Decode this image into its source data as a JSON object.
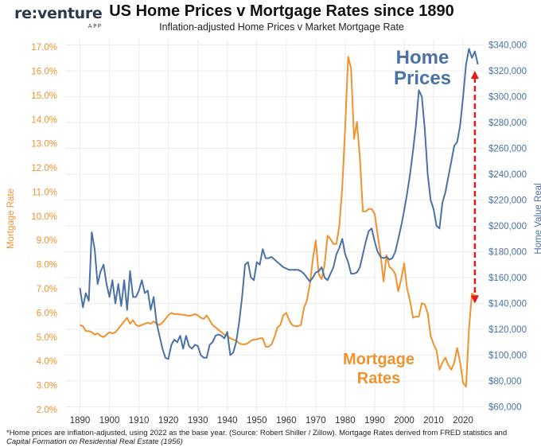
{
  "header": {
    "logo_text": "re:venture",
    "logo_sub": "APP",
    "title": "US Home Prices v Mortgage Rates since 1890",
    "subtitle": "Inflation-adjusted Home Prices v Market Mortgage Rate"
  },
  "footnote": {
    "line1": "*Home prices are inflation-adjusted, using 2022 as the base year. (Source: Robert Shiller / Zillow). Mortgage Rates derived from FRED statistics and",
    "line2": "Capital Formation on Residential Real Estate (1956)"
  },
  "colors": {
    "mortgage": "#f0922e",
    "home": "#4a72a6",
    "arrow": "#e31a1c",
    "grid": "#ececec"
  },
  "chart_data": {
    "type": "line",
    "x_ticks": [
      1890,
      1900,
      1910,
      1920,
      1930,
      1940,
      1950,
      1960,
      1970,
      1980,
      1990,
      2000,
      2010,
      2020
    ],
    "xlim": [
      1885,
      2027
    ],
    "left_axis": {
      "label": "Mortgage Rate",
      "ylim": [
        1.9,
        17.3
      ],
      "ticks": [
        2.0,
        3.0,
        4.0,
        5.0,
        6.0,
        7.0,
        8.0,
        9.0,
        10.0,
        11.0,
        12.0,
        13.0,
        14.0,
        15.0,
        16.0,
        17.0
      ],
      "tick_labels": [
        "2.0%",
        "3.0%",
        "4.0%",
        "5.0%",
        "6.0%",
        "7.0%",
        "8.0%",
        "9.0%",
        "10.0%",
        "11.0%",
        "12.0%",
        "13.0%",
        "14.0%",
        "15.0%",
        "16.0%",
        "17.0%"
      ]
    },
    "right_axis": {
      "label": "Home Value Real",
      "ylim": [
        56000,
        344000
      ],
      "ticks": [
        60000,
        80000,
        100000,
        120000,
        140000,
        160000,
        180000,
        200000,
        220000,
        240000,
        260000,
        280000,
        300000,
        320000,
        340000
      ],
      "tick_labels": [
        "$60,000",
        "$80,000",
        "$100,000",
        "$120,000",
        "$140,000",
        "$160,000",
        "$180,000",
        "$200,000",
        "$220,000",
        "$240,000",
        "$260,000",
        "$280,000",
        "$300,000",
        "$320,000",
        "$340,000"
      ]
    },
    "annotations": {
      "home_line1": "Home",
      "home_line2": "Prices",
      "mortgage_line1": "Mortgage",
      "mortgage_line2": "Rates"
    },
    "arrow": {
      "x": 2024,
      "y_top": 320000,
      "y_bottom": 140000
    },
    "series": [
      {
        "name": "Mortgage Rates",
        "axis": "left",
        "points": [
          [
            1890,
            5.5
          ],
          [
            1891,
            5.45
          ],
          [
            1892,
            5.25
          ],
          [
            1893,
            5.25
          ],
          [
            1894,
            5.2
          ],
          [
            1895,
            5.1
          ],
          [
            1896,
            5.15
          ],
          [
            1897,
            5.05
          ],
          [
            1898,
            5.0
          ],
          [
            1899,
            5.1
          ],
          [
            1900,
            5.2
          ],
          [
            1901,
            5.15
          ],
          [
            1902,
            5.2
          ],
          [
            1903,
            5.35
          ],
          [
            1904,
            5.5
          ],
          [
            1905,
            5.65
          ],
          [
            1906,
            5.8
          ],
          [
            1907,
            5.55
          ],
          [
            1908,
            5.7
          ],
          [
            1909,
            5.5
          ],
          [
            1910,
            5.45
          ],
          [
            1911,
            5.5
          ],
          [
            1912,
            5.55
          ],
          [
            1913,
            5.6
          ],
          [
            1914,
            5.55
          ],
          [
            1915,
            5.65
          ],
          [
            1916,
            5.55
          ],
          [
            1917,
            5.5
          ],
          [
            1918,
            5.6
          ],
          [
            1919,
            5.75
          ],
          [
            1920,
            5.9
          ],
          [
            1921,
            6.0
          ],
          [
            1922,
            5.95
          ],
          [
            1923,
            5.95
          ],
          [
            1924,
            5.93
          ],
          [
            1925,
            5.92
          ],
          [
            1926,
            5.9
          ],
          [
            1927,
            5.88
          ],
          [
            1928,
            5.9
          ],
          [
            1929,
            5.95
          ],
          [
            1930,
            5.9
          ],
          [
            1931,
            5.8
          ],
          [
            1932,
            5.75
          ],
          [
            1933,
            5.9
          ],
          [
            1934,
            5.7
          ],
          [
            1935,
            5.5
          ],
          [
            1936,
            5.4
          ],
          [
            1937,
            5.3
          ],
          [
            1938,
            5.2
          ],
          [
            1939,
            5.1
          ],
          [
            1940,
            5.05
          ],
          [
            1941,
            4.95
          ],
          [
            1942,
            4.9
          ],
          [
            1943,
            4.85
          ],
          [
            1944,
            4.75
          ],
          [
            1945,
            4.7
          ],
          [
            1946,
            4.7
          ],
          [
            1947,
            4.75
          ],
          [
            1948,
            4.85
          ],
          [
            1949,
            4.9
          ],
          [
            1950,
            4.9
          ],
          [
            1951,
            4.95
          ],
          [
            1952,
            4.95
          ],
          [
            1953,
            4.6
          ],
          [
            1954,
            4.6
          ],
          [
            1955,
            4.7
          ],
          [
            1956,
            5.0
          ],
          [
            1957,
            5.4
          ],
          [
            1958,
            5.5
          ],
          [
            1959,
            5.9
          ],
          [
            1960,
            6.0
          ],
          [
            1961,
            5.7
          ],
          [
            1962,
            5.5
          ],
          [
            1963,
            5.45
          ],
          [
            1964,
            5.45
          ],
          [
            1965,
            5.5
          ],
          [
            1966,
            6.2
          ],
          [
            1967,
            6.5
          ],
          [
            1968,
            7.2
          ],
          [
            1969,
            8.2
          ],
          [
            1970,
            9.0
          ],
          [
            1971,
            7.6
          ],
          [
            1972,
            7.4
          ],
          [
            1973,
            8.0
          ],
          [
            1974,
            9.2
          ],
          [
            1975,
            9.05
          ],
          [
            1976,
            8.85
          ],
          [
            1977,
            8.85
          ],
          [
            1978,
            9.6
          ],
          [
            1979,
            11.2
          ],
          [
            1980,
            13.7
          ],
          [
            1981,
            16.6
          ],
          [
            1982,
            16.1
          ],
          [
            1983,
            13.2
          ],
          [
            1984,
            13.9
          ],
          [
            1985,
            12.4
          ],
          [
            1986,
            10.2
          ],
          [
            1987,
            10.2
          ],
          [
            1988,
            10.3
          ],
          [
            1989,
            10.3
          ],
          [
            1990,
            10.1
          ],
          [
            1991,
            9.25
          ],
          [
            1992,
            8.4
          ],
          [
            1993,
            7.3
          ],
          [
            1994,
            8.4
          ],
          [
            1995,
            7.9
          ],
          [
            1996,
            7.8
          ],
          [
            1997,
            7.6
          ],
          [
            1998,
            6.9
          ],
          [
            1999,
            7.4
          ],
          [
            2000,
            8.05
          ],
          [
            2001,
            7.0
          ],
          [
            2002,
            6.5
          ],
          [
            2003,
            5.8
          ],
          [
            2004,
            5.85
          ],
          [
            2005,
            5.85
          ],
          [
            2006,
            6.4
          ],
          [
            2007,
            6.35
          ],
          [
            2008,
            6.0
          ],
          [
            2009,
            5.05
          ],
          [
            2010,
            4.7
          ],
          [
            2011,
            4.45
          ],
          [
            2012,
            3.65
          ],
          [
            2013,
            3.95
          ],
          [
            2014,
            4.15
          ],
          [
            2015,
            3.85
          ],
          [
            2016,
            3.65
          ],
          [
            2017,
            3.95
          ],
          [
            2018,
            4.55
          ],
          [
            2019,
            3.95
          ],
          [
            2020,
            3.1
          ],
          [
            2021,
            2.95
          ],
          [
            2022,
            5.35
          ],
          [
            2023,
            6.8
          ],
          [
            2024,
            6.72
          ],
          [
            2025,
            6.7
          ]
        ]
      },
      {
        "name": "Home Prices",
        "axis": "right",
        "points": [
          [
            1890,
            152000
          ],
          [
            1891,
            137000
          ],
          [
            1892,
            148000
          ],
          [
            1893,
            142000
          ],
          [
            1894,
            195000
          ],
          [
            1895,
            182000
          ],
          [
            1896,
            155000
          ],
          [
            1897,
            165000
          ],
          [
            1898,
            170000
          ],
          [
            1899,
            155000
          ],
          [
            1900,
            145000
          ],
          [
            1901,
            158000
          ],
          [
            1902,
            140000
          ],
          [
            1903,
            155000
          ],
          [
            1904,
            138000
          ],
          [
            1905,
            158000
          ],
          [
            1906,
            135000
          ],
          [
            1907,
            165000
          ],
          [
            1908,
            145000
          ],
          [
            1909,
            145000
          ],
          [
            1910,
            150000
          ],
          [
            1911,
            158000
          ],
          [
            1912,
            148000
          ],
          [
            1913,
            150000
          ],
          [
            1914,
            135000
          ],
          [
            1915,
            145000
          ],
          [
            1916,
            125000
          ],
          [
            1917,
            115000
          ],
          [
            1918,
            105000
          ],
          [
            1919,
            98000
          ],
          [
            1920,
            97000
          ],
          [
            1921,
            108000
          ],
          [
            1922,
            112000
          ],
          [
            1923,
            110000
          ],
          [
            1924,
            115000
          ],
          [
            1925,
            105000
          ],
          [
            1926,
            115000
          ],
          [
            1927,
            107000
          ],
          [
            1928,
            105000
          ],
          [
            1929,
            108000
          ],
          [
            1930,
            107000
          ],
          [
            1931,
            100000
          ],
          [
            1932,
            98000
          ],
          [
            1933,
            98000
          ],
          [
            1934,
            108000
          ],
          [
            1935,
            110000
          ],
          [
            1936,
            115000
          ],
          [
            1937,
            116000
          ],
          [
            1938,
            115000
          ],
          [
            1939,
            113000
          ],
          [
            1940,
            118000
          ],
          [
            1941,
            100000
          ],
          [
            1942,
            102000
          ],
          [
            1943,
            110000
          ],
          [
            1944,
            125000
          ],
          [
            1945,
            145000
          ],
          [
            1946,
            170000
          ],
          [
            1947,
            172000
          ],
          [
            1948,
            160000
          ],
          [
            1949,
            158000
          ],
          [
            1950,
            172000
          ],
          [
            1951,
            170000
          ],
          [
            1952,
            182000
          ],
          [
            1953,
            175000
          ],
          [
            1954,
            175000
          ],
          [
            1955,
            176000
          ],
          [
            1956,
            174000
          ],
          [
            1957,
            172000
          ],
          [
            1958,
            170000
          ],
          [
            1959,
            168000
          ],
          [
            1960,
            167000
          ],
          [
            1961,
            166000
          ],
          [
            1962,
            166000
          ],
          [
            1963,
            166000
          ],
          [
            1964,
            166000
          ],
          [
            1965,
            165000
          ],
          [
            1966,
            163000
          ],
          [
            1967,
            160000
          ],
          [
            1968,
            157000
          ],
          [
            1969,
            160000
          ],
          [
            1970,
            164000
          ],
          [
            1971,
            165000
          ],
          [
            1972,
            168000
          ],
          [
            1973,
            160000
          ],
          [
            1974,
            158000
          ],
          [
            1975,
            163000
          ],
          [
            1976,
            168000
          ],
          [
            1977,
            178000
          ],
          [
            1978,
            183000
          ],
          [
            1979,
            190000
          ],
          [
            1980,
            178000
          ],
          [
            1981,
            172000
          ],
          [
            1982,
            163000
          ],
          [
            1983,
            163000
          ],
          [
            1984,
            164000
          ],
          [
            1985,
            168000
          ],
          [
            1986,
            178000
          ],
          [
            1987,
            188000
          ],
          [
            1988,
            196000
          ],
          [
            1989,
            198000
          ],
          [
            1990,
            188000
          ],
          [
            1991,
            180000
          ],
          [
            1992,
            176000
          ],
          [
            1993,
            175000
          ],
          [
            1994,
            176000
          ],
          [
            1995,
            174000
          ],
          [
            1996,
            175000
          ],
          [
            1997,
            180000
          ],
          [
            1998,
            190000
          ],
          [
            1999,
            200000
          ],
          [
            2000,
            212000
          ],
          [
            2001,
            225000
          ],
          [
            2002,
            240000
          ],
          [
            2003,
            258000
          ],
          [
            2004,
            278000
          ],
          [
            2005,
            305000
          ],
          [
            2006,
            300000
          ],
          [
            2007,
            275000
          ],
          [
            2008,
            240000
          ],
          [
            2009,
            220000
          ],
          [
            2010,
            213000
          ],
          [
            2011,
            200000
          ],
          [
            2012,
            198000
          ],
          [
            2013,
            218000
          ],
          [
            2014,
            226000
          ],
          [
            2015,
            238000
          ],
          [
            2016,
            250000
          ],
          [
            2017,
            262000
          ],
          [
            2018,
            265000
          ],
          [
            2019,
            278000
          ],
          [
            2020,
            300000
          ],
          [
            2021,
            325000
          ],
          [
            2022,
            337000
          ],
          [
            2023,
            330000
          ],
          [
            2024,
            335000
          ],
          [
            2025,
            325000
          ]
        ]
      }
    ]
  }
}
